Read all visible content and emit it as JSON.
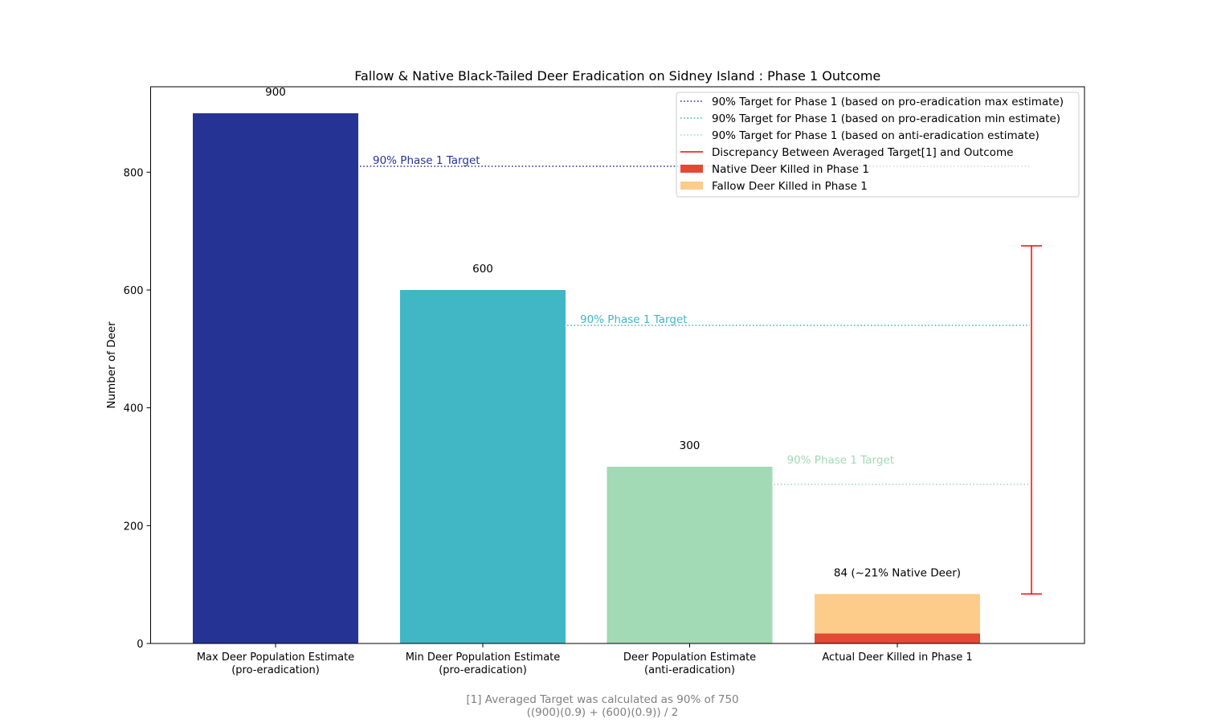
{
  "chart_data": {
    "type": "bar",
    "title": "Fallow & Native Black-Tailed Deer Eradication on Sidney Island : Phase 1 Outcome",
    "ylabel": "Number of Deer",
    "xlabel": "",
    "ylim": [
      0,
      945
    ],
    "yticks": [
      0,
      200,
      400,
      600,
      800
    ],
    "categories": [
      "Max Deer Population Estimate\n(pro-eradication)",
      "Min Deer Population Estimate\n(pro-eradication)",
      "Deer Population Estimate\n(anti-eradication)",
      "Actual Deer Killed in Phase 1"
    ],
    "bars": [
      {
        "category_index": 0,
        "value": 900,
        "color": "#253494",
        "label": "900"
      },
      {
        "category_index": 1,
        "value": 600,
        "color": "#41b6c4",
        "label": "600"
      },
      {
        "category_index": 2,
        "value": 300,
        "color": "#a1dab4",
        "label": "300"
      }
    ],
    "stacked": {
      "category_index": 3,
      "label": "84 (~21% Native Deer)",
      "segments": [
        {
          "name": "Native Deer Killed in Phase 1",
          "value": 17,
          "color": "#e34a33"
        },
        {
          "name": "Fallow Deer Killed in Phase 1",
          "value": 67,
          "color": "#fdcc8a"
        }
      ]
    },
    "targets": [
      {
        "name": "90% Target for Phase 1 (based on pro-eradication max estimate)",
        "value": 810,
        "color": "#253494",
        "from_category": 0,
        "text": "90% Phase 1 Target"
      },
      {
        "name": "90% Target for Phase 1  (based on pro-eradication min estimate)",
        "value": 540,
        "color": "#41b6c4",
        "from_category": 1,
        "text": "90% Phase 1 Target"
      },
      {
        "name": "90% Target for Phase 1  (based on anti-eradication estimate)",
        "value": 270,
        "color": "#a1dab4",
        "from_category": 2,
        "text": "90% Phase 1 Target"
      }
    ],
    "discrepancy": {
      "name": "Discrepancy Between Averaged Target[1] and Outcome",
      "from": 84,
      "to": 675,
      "color": "#ff0000"
    },
    "legend_position": "top-right",
    "legend": [
      {
        "kind": "dotted",
        "color": "#253494",
        "label": "90% Target for Phase 1 (based on pro-eradication max estimate)"
      },
      {
        "kind": "dotted",
        "color": "#41b6c4",
        "label": "90% Target for Phase 1  (based on pro-eradication min estimate)"
      },
      {
        "kind": "dotted",
        "color": "#a1dab4",
        "label": "90% Target for Phase 1  (based on anti-eradication estimate)"
      },
      {
        "kind": "line",
        "color": "#ff0000",
        "label": "Discrepancy Between Averaged Target[1] and Outcome"
      },
      {
        "kind": "patch",
        "color": "#e34a33",
        "label": "Native Deer Killed in Phase 1"
      },
      {
        "kind": "patch",
        "color": "#fdcc8a",
        "label": "Fallow Deer Killed in Phase 1"
      }
    ],
    "footnote": [
      "[1] Averaged Target was calculated as 90% of 750",
      "((900)(0.9) + (600)(0.9)) / 2"
    ],
    "grid": false
  }
}
